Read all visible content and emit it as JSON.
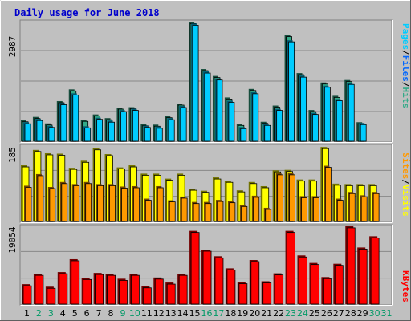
{
  "title": "Daily usage for June 2018",
  "colors": {
    "background": "#c0c0c0",
    "title": "#0000cc",
    "pages": "#00ccff",
    "files": "#0066ff",
    "hits": "#33aa88",
    "visits": "#ffff00",
    "sites": "#ff9900",
    "kbytes": "#ff0000",
    "weekend": "#009966",
    "weekday": "#000000"
  },
  "panels": {
    "top": {
      "max_label": "2987",
      "legend": [
        "Pages",
        "/",
        "Files",
        "/",
        "Hits"
      ]
    },
    "mid": {
      "max_label": "185",
      "legend": [
        "Sites",
        "/",
        "Visits"
      ]
    },
    "bot": {
      "max_label": "19054",
      "legend": [
        "KBytes"
      ]
    }
  },
  "chart_data": {
    "type": "bar",
    "title": "Daily usage for June 2018",
    "categories": [
      "1",
      "2",
      "3",
      "4",
      "5",
      "6",
      "7",
      "8",
      "9",
      "10",
      "11",
      "12",
      "13",
      "14",
      "15",
      "16",
      "17",
      "18",
      "19",
      "20",
      "21",
      "22",
      "23",
      "24",
      "25",
      "26",
      "27",
      "28",
      "29",
      "30",
      "31"
    ],
    "weekend_days": [
      2,
      3,
      9,
      10,
      16,
      17,
      23,
      24,
      30,
      31
    ],
    "panels": [
      {
        "name": "top",
        "ymax": 2987,
        "series": [
          {
            "name": "Hits",
            "values": [
              480,
              560,
              400,
              950,
              1240,
              490,
              620,
              530,
              790,
              800,
              380,
              370,
              580,
              890,
              2900,
              1740,
              1570,
              1040,
              390,
              1250,
              440,
              840,
              2580,
              1640,
              730,
              1410,
              1080,
              1470,
              430,
              0,
              0
            ]
          },
          {
            "name": "Files",
            "values": [
              430,
              510,
              340,
              900,
              1140,
              330,
              540,
              470,
              730,
              760,
              340,
              320,
              530,
              830,
              2860,
              1680,
              1510,
              960,
              310,
              1170,
              390,
              760,
              2450,
              1580,
              660,
              1330,
              1000,
              1400,
              410,
              0,
              0
            ]
          },
          {
            "name": "Pages",
            "values": [
              0,
              0,
              0,
              0,
              0,
              0,
              0,
              0,
              0,
              0,
              0,
              0,
              0,
              0,
              0,
              0,
              0,
              0,
              0,
              0,
              0,
              0,
              0,
              0,
              0,
              0,
              0,
              0,
              0,
              0,
              0
            ]
          }
        ]
      },
      {
        "name": "mid",
        "ymax": 185,
        "series": [
          {
            "name": "Visits",
            "values": [
              131,
              168,
              160,
              159,
              125,
              142,
              172,
              158,
              126,
              131,
              111,
              111,
              99,
              111,
              75,
              70,
              102,
              94,
              71,
              91,
              81,
              119,
              120,
              97,
              97,
              175,
              87,
              86,
              86,
              86,
              0
            ]
          },
          {
            "name": "Sites",
            "values": [
              82,
              110,
              79,
              91,
              86,
              91,
              86,
              86,
              80,
              81,
              51,
              81,
              47,
              56,
              43,
              43,
              48,
              45,
              36,
              58,
              29,
              112,
              112,
              57,
              57,
              130,
              51,
              67,
              59,
              67,
              0
            ]
          }
        ]
      },
      {
        "name": "bot",
        "ymax": 19054,
        "series": [
          {
            "name": "KBytes",
            "values": [
              4400,
              6900,
              3800,
              7300,
              10400,
              5900,
              7100,
              6900,
              5700,
              6900,
              3900,
              6000,
              4800,
              6900,
              17200,
              12700,
              11100,
              8200,
              4900,
              10200,
              5100,
              7000,
              17200,
              11300,
              9500,
              6100,
              9300,
              18300,
              13200,
              15900,
              0
            ]
          }
        ]
      }
    ]
  }
}
